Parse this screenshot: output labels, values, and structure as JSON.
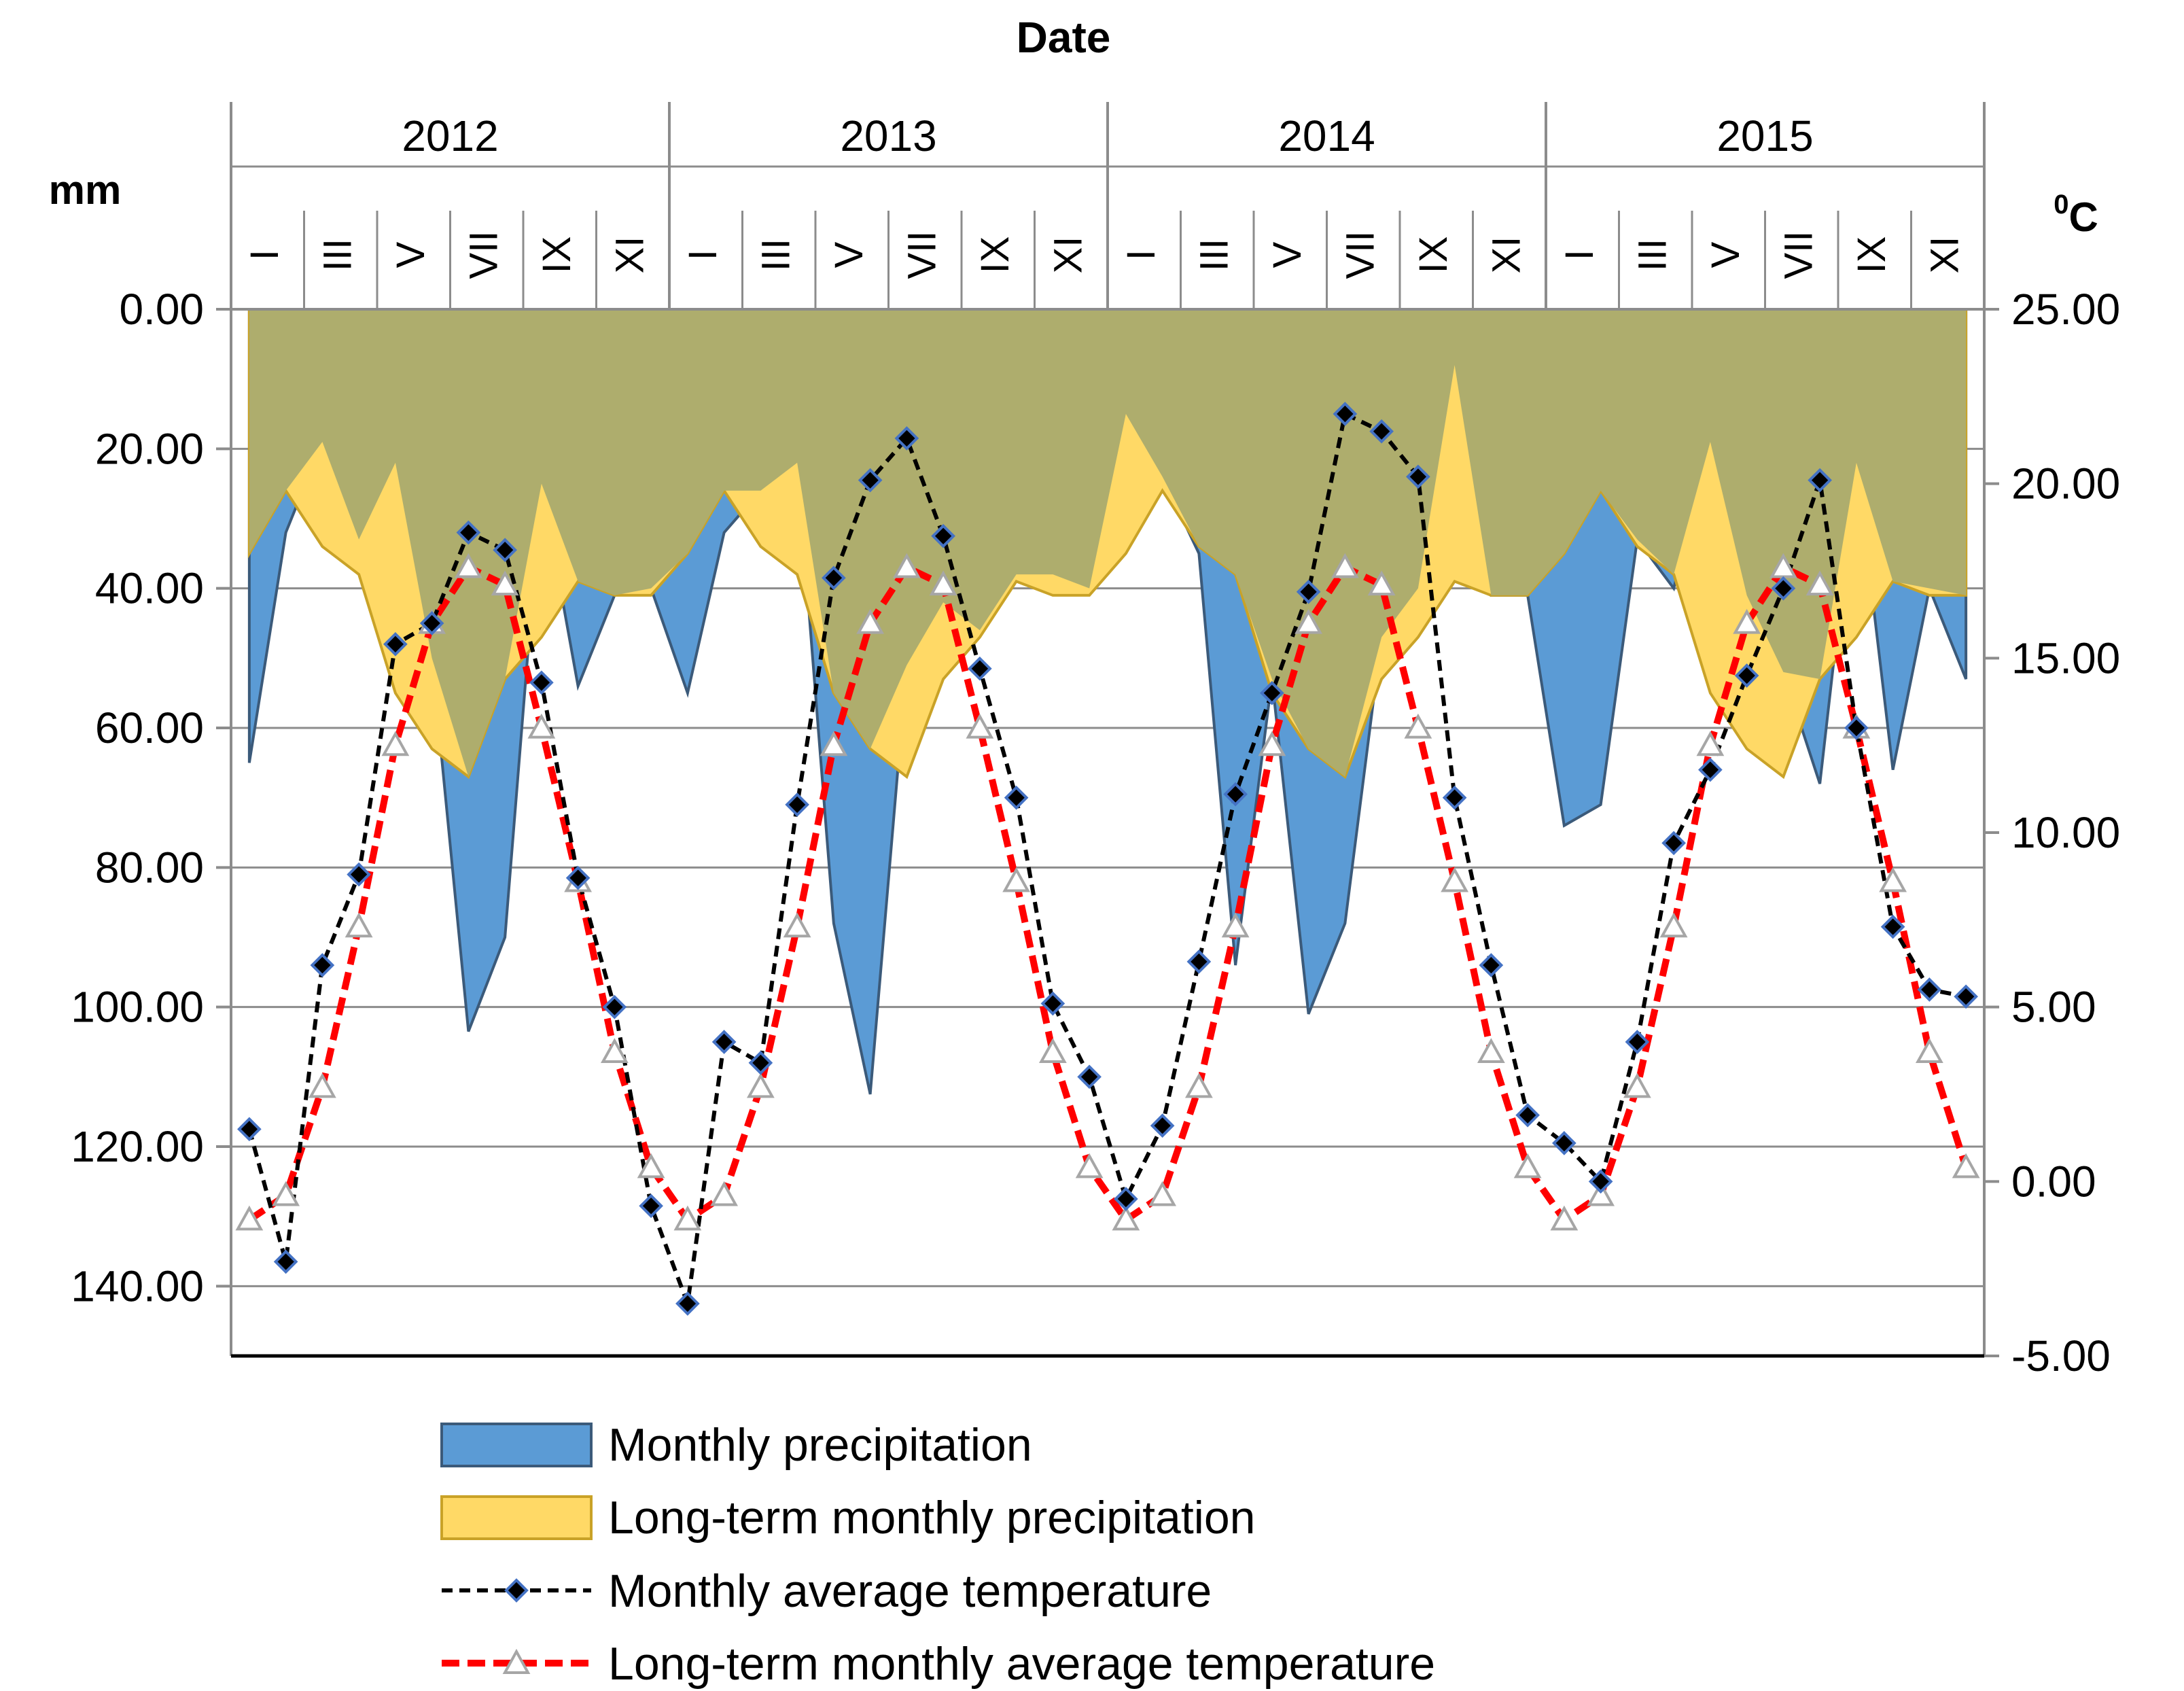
{
  "chart_data": {
    "type": "area+line",
    "title": "Date",
    "left_axis": {
      "label": "mm",
      "range": [
        0,
        150
      ],
      "inverted": true,
      "ticks": [
        "0.00",
        "20.00",
        "40.00",
        "60.00",
        "80.00",
        "100.00",
        "120.00",
        "140.00"
      ],
      "tick_values": [
        0,
        20,
        40,
        60,
        80,
        100,
        120,
        140
      ]
    },
    "right_axis": {
      "label_base": "C",
      "label_sup": "0",
      "range": [
        -5,
        25
      ],
      "ticks": [
        "25.00",
        "20.00",
        "15.00",
        "10.00",
        "5.00",
        "0.00",
        "-5.00"
      ],
      "tick_values": [
        25,
        20,
        15,
        10,
        5,
        0,
        -5
      ]
    },
    "years": [
      "2012",
      "2013",
      "2014",
      "2015"
    ],
    "month_labels": [
      "I",
      "III",
      "V",
      "VII",
      "IX",
      "XI"
    ],
    "grid": "horizontal",
    "legend_position": "bottom",
    "colors": {
      "monthly_precip": "#5b9bd5",
      "longterm_precip": "#ffd966",
      "overlap": "#aead6d",
      "monthly_temp": "#000000",
      "longterm_temp": "#ff0000"
    },
    "series": [
      {
        "name": "Monthly precipitation",
        "kind": "area",
        "axis": "left",
        "values": [
          65,
          32,
          19,
          33,
          22,
          50,
          103.5,
          90,
          25,
          54,
          41,
          40,
          55,
          32,
          26,
          22,
          88,
          112.5,
          51,
          42,
          46,
          38,
          38,
          40,
          15,
          24,
          35,
          94,
          53,
          101,
          88,
          47,
          40,
          8,
          41,
          41,
          74,
          71,
          33,
          40,
          19,
          41,
          52,
          68,
          22,
          66,
          40,
          53
        ]
      },
      {
        "name": "Long-term monthly precipitation",
        "kind": "area",
        "axis": "left",
        "values": [
          35,
          26,
          34,
          38,
          55,
          63,
          67,
          53,
          47,
          39,
          41,
          41,
          35,
          26,
          34,
          38,
          55,
          63,
          67,
          53,
          47,
          39,
          41,
          41,
          35,
          26,
          34,
          38,
          55,
          63,
          67,
          53,
          47,
          39,
          41,
          41,
          35,
          26,
          34,
          38,
          55,
          63,
          67,
          53,
          47,
          39,
          41,
          41
        ]
      },
      {
        "name": "Monthly average temperature",
        "kind": "line",
        "axis": "right",
        "marker": "diamond",
        "values": [
          1.5,
          -2.3,
          6.2,
          8.8,
          15.4,
          16.0,
          18.6,
          18.1,
          14.3,
          8.7,
          5.0,
          -0.7,
          -3.5,
          4.0,
          3.4,
          10.8,
          17.3,
          20.1,
          21.3,
          18.5,
          14.7,
          11.0,
          5.1,
          3.0,
          -0.5,
          1.6,
          6.3,
          11.1,
          14.0,
          16.9,
          22.0,
          21.5,
          20.2,
          11.0,
          6.2,
          1.9,
          1.1,
          0.0,
          4.0,
          9.7,
          11.8,
          14.5,
          17.0,
          20.1,
          13.0,
          7.3,
          5.5,
          5.3
        ]
      },
      {
        "name": "Long-term monthly average temperature",
        "kind": "line",
        "axis": "right",
        "marker": "triangle",
        "values": [
          -1.1,
          -0.4,
          2.7,
          7.3,
          12.5,
          16.0,
          17.6,
          17.1,
          13.0,
          8.6,
          3.7,
          0.4,
          -1.1,
          -0.4,
          2.7,
          7.3,
          12.5,
          16.0,
          17.6,
          17.1,
          13.0,
          8.6,
          3.7,
          0.4,
          -1.1,
          -0.4,
          2.7,
          7.3,
          12.5,
          16.0,
          17.6,
          17.1,
          13.0,
          8.6,
          3.7,
          0.4,
          -1.1,
          -0.4,
          2.7,
          7.3,
          12.5,
          16.0,
          17.6,
          17.1,
          13.0,
          8.6,
          3.7,
          0.4
        ]
      }
    ]
  }
}
